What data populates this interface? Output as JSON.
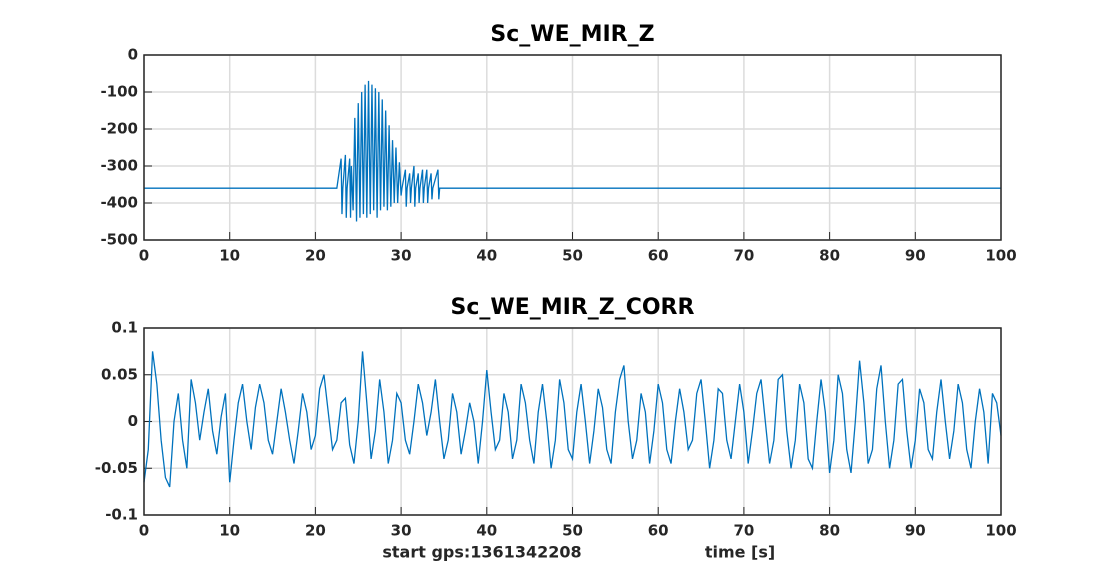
{
  "chart_data": [
    {
      "type": "line",
      "title": "Sc_WE_MIR_Z",
      "color": "#0072bd",
      "grid": true,
      "xlim": [
        0,
        100
      ],
      "xticks": [
        0,
        10,
        20,
        30,
        40,
        50,
        60,
        70,
        80,
        90,
        100
      ],
      "ylim": [
        -500,
        0
      ],
      "yticks": [
        -500,
        -400,
        -300,
        -200,
        -100,
        0
      ],
      "x": [
        0,
        22.5,
        23,
        23.1,
        23.2,
        23.5,
        23.6,
        23.7,
        24,
        24.1,
        24.2,
        24.4,
        24.6,
        24.8,
        25,
        25.2,
        25.4,
        25.6,
        25.8,
        26,
        26.2,
        26.4,
        26.6,
        26.8,
        27,
        27.2,
        27.4,
        27.6,
        27.8,
        28,
        28.2,
        28.4,
        28.6,
        28.8,
        29,
        29.2,
        29.4,
        29.6,
        29.8,
        30,
        30.1,
        30.5,
        30.6,
        30.7,
        31,
        31.1,
        31.2,
        31.5,
        31.6,
        31.7,
        32,
        32.1,
        32.2,
        32.5,
        32.6,
        32.7,
        33,
        33.1,
        33.2,
        33.5,
        33.6,
        33.7,
        34.3,
        34.4,
        34.5,
        100
      ],
      "values": [
        -360,
        -360,
        -280,
        -430,
        -360,
        -270,
        -440,
        -360,
        -280,
        -440,
        -300,
        -420,
        -170,
        -450,
        -130,
        -440,
        -100,
        -430,
        -80,
        -440,
        -70,
        -430,
        -80,
        -420,
        -90,
        -440,
        -100,
        -420,
        -120,
        -410,
        -150,
        -420,
        -190,
        -410,
        -230,
        -400,
        -250,
        -400,
        -290,
        -380,
        -360,
        -310,
        -410,
        -360,
        -320,
        -400,
        -360,
        -300,
        -410,
        -360,
        -320,
        -400,
        -360,
        -310,
        -400,
        -360,
        -310,
        -400,
        -360,
        -320,
        -390,
        -360,
        -310,
        -390,
        -360,
        -360
      ]
    },
    {
      "type": "line",
      "title": "Sc_WE_MIR_Z_CORR",
      "color": "#0072bd",
      "grid": true,
      "xlabel": "time [s]",
      "annotation": "start gps:1361342208",
      "xlim": [
        0,
        100
      ],
      "xticks": [
        0,
        10,
        20,
        30,
        40,
        50,
        60,
        70,
        80,
        90,
        100
      ],
      "ylim": [
        -0.1,
        0.1
      ],
      "yticks": [
        -0.1,
        -0.05,
        0,
        0.05,
        0.1
      ],
      "x": [
        0,
        0.5,
        1,
        1.5,
        2,
        2.5,
        3,
        3.5,
        4,
        4.5,
        5,
        5.5,
        6,
        6.5,
        7,
        7.5,
        8,
        8.5,
        9,
        9.5,
        10,
        10.5,
        11,
        11.5,
        12,
        12.5,
        13,
        13.5,
        14,
        14.5,
        15,
        15.5,
        16,
        16.5,
        17,
        17.5,
        18,
        18.5,
        19,
        19.5,
        20,
        20.5,
        21,
        21.5,
        22,
        22.5,
        23,
        23.5,
        24,
        24.5,
        25,
        25.5,
        26,
        26.5,
        27,
        27.5,
        28,
        28.5,
        29,
        29.5,
        30,
        30.5,
        31,
        31.5,
        32,
        32.5,
        33,
        33.5,
        34,
        34.5,
        35,
        35.5,
        36,
        36.5,
        37,
        37.5,
        38,
        38.5,
        39,
        39.5,
        40,
        40.5,
        41,
        41.5,
        42,
        42.5,
        43,
        43.5,
        44,
        44.5,
        45,
        45.5,
        46,
        46.5,
        47,
        47.5,
        48,
        48.5,
        49,
        49.5,
        50,
        50.5,
        51,
        51.5,
        52,
        52.5,
        53,
        53.5,
        54,
        54.5,
        55,
        55.5,
        56,
        56.5,
        57,
        57.5,
        58,
        58.5,
        59,
        59.5,
        60,
        60.5,
        61,
        61.5,
        62,
        62.5,
        63,
        63.5,
        64,
        64.5,
        65,
        65.5,
        66,
        66.5,
        67,
        67.5,
        68,
        68.5,
        69,
        69.5,
        70,
        70.5,
        71,
        71.5,
        72,
        72.5,
        73,
        73.5,
        74,
        74.5,
        75,
        75.5,
        76,
        76.5,
        77,
        77.5,
        78,
        78.5,
        79,
        79.5,
        80,
        80.5,
        81,
        81.5,
        82,
        82.5,
        83,
        83.5,
        84,
        84.5,
        85,
        85.5,
        86,
        86.5,
        87,
        87.5,
        88,
        88.5,
        89,
        89.5,
        90,
        90.5,
        91,
        91.5,
        92,
        92.5,
        93,
        93.5,
        94,
        94.5,
        95,
        95.5,
        96,
        96.5,
        97,
        97.5,
        98,
        98.5,
        99,
        99.5,
        100
      ],
      "values": [
        -0.065,
        -0.03,
        0.075,
        0.04,
        -0.02,
        -0.06,
        -0.07,
        0.0,
        0.03,
        -0.02,
        -0.05,
        0.045,
        0.02,
        -0.02,
        0.01,
        0.035,
        -0.01,
        -0.035,
        0.005,
        0.03,
        -0.065,
        -0.02,
        0.02,
        0.04,
        0.0,
        -0.03,
        0.015,
        0.04,
        0.02,
        -0.02,
        -0.035,
        0.0,
        0.035,
        0.01,
        -0.02,
        -0.045,
        -0.01,
        0.03,
        0.01,
        -0.03,
        -0.015,
        0.035,
        0.05,
        0.01,
        -0.03,
        -0.02,
        0.02,
        0.025,
        -0.025,
        -0.045,
        0.0,
        0.075,
        0.02,
        -0.04,
        -0.01,
        0.045,
        0.01,
        -0.045,
        -0.02,
        0.03,
        0.02,
        -0.02,
        -0.035,
        0.0,
        0.04,
        0.02,
        -0.015,
        0.01,
        0.045,
        0.0,
        -0.04,
        -0.02,
        0.03,
        0.01,
        -0.035,
        -0.01,
        0.02,
        0.0,
        -0.045,
        0.0,
        0.055,
        0.01,
        -0.03,
        -0.02,
        0.03,
        0.01,
        -0.04,
        -0.02,
        0.04,
        0.02,
        -0.02,
        -0.045,
        0.01,
        0.04,
        0.0,
        -0.05,
        -0.02,
        0.045,
        0.02,
        -0.03,
        -0.04,
        0.01,
        0.04,
        0.0,
        -0.045,
        -0.01,
        0.035,
        0.015,
        -0.03,
        -0.045,
        0.01,
        0.045,
        0.06,
        0.0,
        -0.04,
        -0.02,
        0.03,
        0.01,
        -0.045,
        -0.01,
        0.04,
        0.02,
        -0.03,
        -0.045,
        0.0,
        0.035,
        0.01,
        -0.03,
        -0.02,
        0.03,
        0.045,
        0.0,
        -0.05,
        -0.02,
        0.035,
        0.03,
        -0.02,
        -0.04,
        0.0,
        0.04,
        0.01,
        -0.045,
        -0.01,
        0.03,
        0.045,
        0.0,
        -0.045,
        -0.02,
        0.045,
        0.05,
        -0.01,
        -0.05,
        -0.02,
        0.04,
        0.02,
        -0.04,
        -0.05,
        0.0,
        0.045,
        0.01,
        -0.055,
        -0.02,
        0.05,
        0.03,
        -0.03,
        -0.055,
        0.0,
        0.065,
        0.02,
        -0.045,
        -0.03,
        0.035,
        0.06,
        0.0,
        -0.05,
        -0.02,
        0.04,
        0.045,
        -0.01,
        -0.05,
        -0.02,
        0.035,
        0.02,
        -0.03,
        -0.04,
        0.01,
        0.045,
        0.0,
        -0.04,
        -0.01,
        0.04,
        0.02,
        -0.03,
        -0.05,
        0.0,
        0.035,
        0.01,
        -0.045,
        0.03,
        0.02,
        -0.015
      ]
    }
  ]
}
